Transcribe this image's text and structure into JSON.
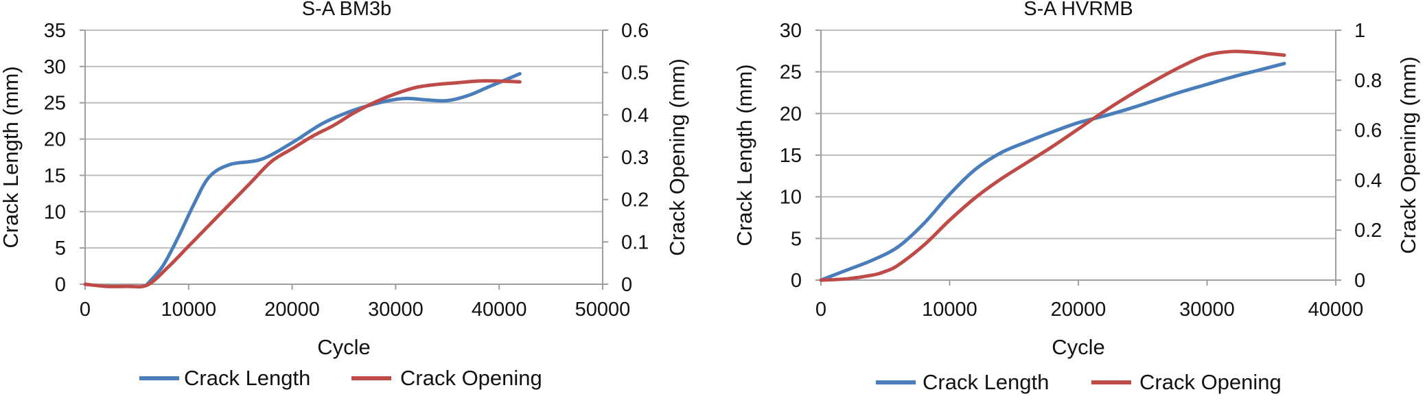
{
  "chart_data": [
    {
      "type": "line",
      "title": "S-A BM3b",
      "xlabel": "Cycle",
      "ylabel": "Crack Length (mm)",
      "y2label": "Crack Opening (mm)",
      "xlim": [
        0,
        50000
      ],
      "ylim": [
        0,
        35
      ],
      "y2lim": [
        0,
        0.6
      ],
      "x_ticks": [
        0,
        10000,
        20000,
        30000,
        40000,
        50000
      ],
      "y_ticks": [
        0,
        5,
        10,
        15,
        20,
        25,
        30,
        35
      ],
      "y2_ticks": [
        0,
        0.1,
        0.2,
        0.3,
        0.4,
        0.5,
        0.6
      ],
      "grid": true,
      "legend_position": "bottom",
      "series": [
        {
          "name": "Crack Length",
          "axis": "left",
          "color": "#4a7ebb",
          "x": [
            6000,
            7500,
            9000,
            10500,
            12000,
            14000,
            17000,
            20000,
            23000,
            26000,
            29000,
            31000,
            33000,
            35000,
            37000,
            39000,
            42000
          ],
          "y": [
            0,
            2.5,
            6.5,
            11,
            14.8,
            16.5,
            17.2,
            19.5,
            22.2,
            24,
            25.2,
            25.6,
            25.4,
            25.3,
            26,
            27.2,
            29
          ]
        },
        {
          "name": "Crack Opening",
          "axis": "right",
          "color": "#be4b48",
          "x": [
            0,
            2000,
            4000,
            6000,
            8000,
            10000,
            12000,
            14000,
            16000,
            18000,
            20000,
            22000,
            24000,
            26000,
            28000,
            30000,
            32000,
            34000,
            36000,
            38000,
            40000,
            42000
          ],
          "y": [
            0,
            -0.005,
            -0.005,
            -0.002,
            0.04,
            0.09,
            0.14,
            0.19,
            0.24,
            0.29,
            0.32,
            0.35,
            0.375,
            0.405,
            0.43,
            0.45,
            0.465,
            0.472,
            0.476,
            0.48,
            0.48,
            0.478
          ]
        }
      ]
    },
    {
      "type": "line",
      "title": "S-A HVRMB",
      "xlabel": "Cycle",
      "ylabel": "Crack Length (mm)",
      "y2label": "Crack Opening (mm)",
      "xlim": [
        0,
        40000
      ],
      "ylim": [
        0,
        30
      ],
      "y2lim": [
        0,
        1
      ],
      "x_ticks": [
        0,
        10000,
        20000,
        30000,
        40000
      ],
      "y_ticks": [
        0,
        5,
        10,
        15,
        20,
        25,
        30
      ],
      "y2_ticks": [
        0,
        0.2,
        0.4,
        0.6,
        0.8,
        1
      ],
      "grid": true,
      "legend_position": "bottom",
      "series": [
        {
          "name": "Crack Length",
          "axis": "left",
          "color": "#4a7ebb",
          "x": [
            0,
            2000,
            4000,
            6000,
            8000,
            10000,
            12000,
            14000,
            16000,
            18000,
            20000,
            22000,
            24000,
            26000,
            28000,
            30000,
            32000,
            34000,
            36000
          ],
          "y": [
            0,
            1.2,
            2.4,
            4,
            6.8,
            10.3,
            13.3,
            15.3,
            16.6,
            17.8,
            18.9,
            19.7,
            20.6,
            21.6,
            22.6,
            23.5,
            24.4,
            25.2,
            26
          ]
        },
        {
          "name": "Crack Opening",
          "axis": "right",
          "color": "#be4b48",
          "x": [
            0,
            2000,
            4000,
            5000,
            6000,
            8000,
            10000,
            12000,
            14000,
            16000,
            18000,
            20000,
            22000,
            24000,
            26000,
            28000,
            30000,
            32000,
            34000,
            36000
          ],
          "y": [
            0,
            0.005,
            0.02,
            0.035,
            0.06,
            0.14,
            0.24,
            0.33,
            0.405,
            0.47,
            0.535,
            0.605,
            0.675,
            0.74,
            0.8,
            0.855,
            0.9,
            0.915,
            0.91,
            0.9
          ]
        }
      ]
    }
  ]
}
